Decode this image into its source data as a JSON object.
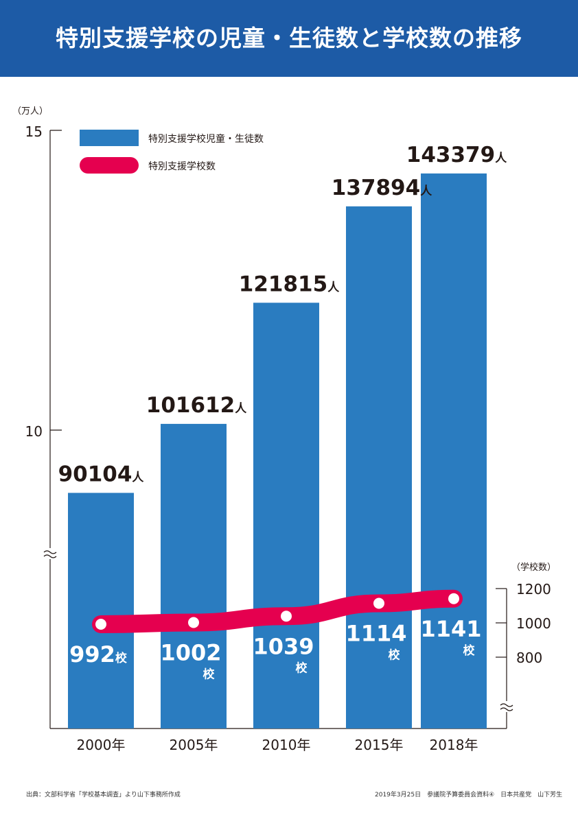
{
  "title": "特別支援学校の児童・生徒数と学校数の推移",
  "source_left": "出典：文部科学省「学校基本調査」より山下事務所作成",
  "source_right": "2019年3月25日　参議院予算委員会資料④　日本共産党　山下芳生",
  "chart_data": {
    "type": "bar",
    "categories": [
      "2000年",
      "2005年",
      "2010年",
      "2015年",
      "2018年"
    ],
    "series": [
      {
        "name": "特別支援学校児童・生徒数",
        "type": "bar",
        "axis": "left",
        "values": [
          90104,
          101612,
          121815,
          137894,
          143379
        ],
        "labels": [
          "90104",
          "101612",
          "121815",
          "137894",
          "143379"
        ],
        "unit": "人",
        "color": "#2a7cc0"
      },
      {
        "name": "特別支援学校数",
        "type": "line",
        "axis": "right",
        "values": [
          992,
          1002,
          1039,
          1114,
          1141
        ],
        "labels": [
          "992",
          "1002",
          "1039",
          "1114",
          "1141"
        ],
        "unit": "校",
        "color": "#e5004f"
      }
    ],
    "left_axis": {
      "unit_label": "（万人）",
      "ticks": [
        "15",
        "10"
      ],
      "tick_values": [
        15,
        10
      ],
      "axis_break": true
    },
    "right_axis": {
      "unit_label": "（学校数）",
      "ticks": [
        "1200",
        "1000",
        "800"
      ],
      "tick_values": [
        1200,
        1000,
        800
      ],
      "axis_break": true
    },
    "legend": "top-left"
  }
}
